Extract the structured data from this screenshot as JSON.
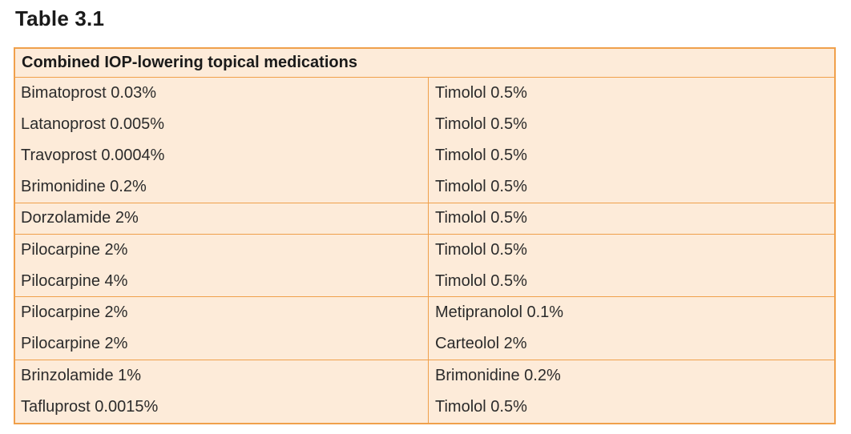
{
  "title": "Table 3.1",
  "table": {
    "header": "Combined IOP-lowering topical medications",
    "rows": [
      {
        "left": "Bimatoprost 0.03%",
        "right": "Timolol 0.5%",
        "group_end": false
      },
      {
        "left": "Latanoprost 0.005%",
        "right": "Timolol 0.5%",
        "group_end": false
      },
      {
        "left": "Travoprost 0.0004%",
        "right": "Timolol 0.5%",
        "group_end": false
      },
      {
        "left": "Brimonidine 0.2%",
        "right": "Timolol 0.5%",
        "group_end": true
      },
      {
        "left": "Dorzolamide 2%",
        "right": "Timolol 0.5%",
        "group_end": true
      },
      {
        "left": "Pilocarpine 2%",
        "right": "Timolol 0.5%",
        "group_end": false
      },
      {
        "left": "Pilocarpine 4%",
        "right": "Timolol 0.5%",
        "group_end": true
      },
      {
        "left": "Pilocarpine 2%",
        "right": "Metipranolol 0.1%",
        "group_end": false
      },
      {
        "left": "Pilocarpine 2%",
        "right": "Carteolol 2%",
        "group_end": true
      },
      {
        "left": "Brinzolamide 1%",
        "right": "Brimonidine 0.2%",
        "group_end": false
      },
      {
        "left": "Tafluprost 0.0015%",
        "right": "Timolol 0.5%",
        "group_end": false
      }
    ]
  },
  "colors": {
    "border": "#f0a04b",
    "background": "#fdebd9"
  }
}
